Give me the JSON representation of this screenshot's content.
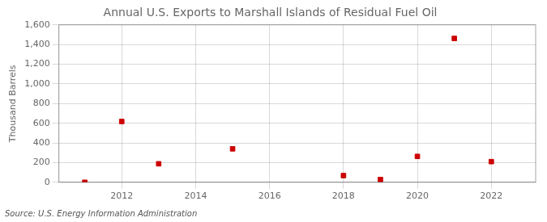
{
  "chart_data": {
    "type": "scatter",
    "title": "Annual U.S. Exports to Marshall Islands of Residual Fuel Oil",
    "ylabel": "Thousand Barrels",
    "annotations": [
      "Source: U.S. Energy Information Administration"
    ],
    "x": [
      2011,
      2012,
      2013,
      2015,
      2018,
      2019,
      2020,
      2021,
      2022
    ],
    "values": [
      0,
      618,
      188,
      340,
      68,
      28,
      263,
      1462,
      210
    ],
    "color": "#cc0000",
    "marker": "square",
    "xlim": [
      2010.3,
      2023.2
    ],
    "xticks": [
      2012,
      2014,
      2016,
      2018,
      2020,
      2022
    ],
    "ylim": [
      0,
      1600
    ],
    "yticks": [
      0,
      200,
      400,
      600,
      800,
      {
        "value": 1000,
        "label": "1,000"
      },
      {
        "value": 1200,
        "label": "1,200"
      },
      {
        "value": 1400,
        "label": "1,400"
      },
      {
        "value": 1600,
        "label": "1,600"
      }
    ],
    "grid": true
  }
}
